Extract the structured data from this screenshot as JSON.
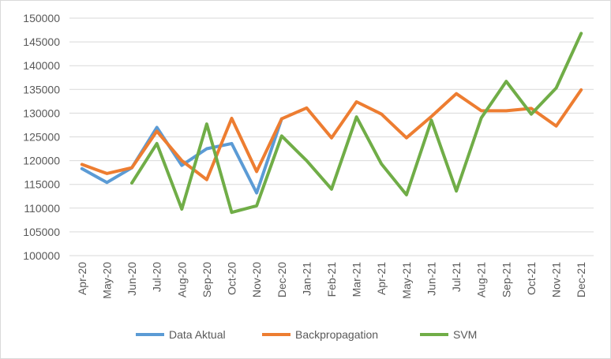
{
  "chart_data": {
    "type": "line",
    "title": "",
    "xlabel": "",
    "ylabel": "",
    "ylim": [
      100000,
      150000
    ],
    "ystep": 5000,
    "grid": true,
    "legend_position": "bottom",
    "categories": [
      "Apr-20",
      "May-20",
      "Jun-20",
      "Jul-20",
      "Aug-20",
      "Sep-20",
      "Oct-20",
      "Nov-20",
      "Dec-20",
      "Jan-21",
      "Feb-21",
      "Mar-21",
      "Apr-21",
      "May-21",
      "Jun-21",
      "Jul-21",
      "Aug-21",
      "Sep-21",
      "Oct-21",
      "Nov-21",
      "Dec-21"
    ],
    "y_tick_labels": [
      "100000",
      "105000",
      "110000",
      "115000",
      "120000",
      "125000",
      "130000",
      "135000",
      "140000",
      "145000",
      "150000"
    ],
    "series": [
      {
        "name": "Data Aktual",
        "color": "#5b9bd5",
        "values": [
          118300,
          115400,
          118500,
          127000,
          119000,
          122500,
          123600,
          113200,
          128800,
          null,
          null,
          null,
          null,
          null,
          null,
          null,
          null,
          null,
          null,
          null,
          null
        ]
      },
      {
        "name": "Backpropagation",
        "color": "#ed7d31",
        "values": [
          119200,
          117300,
          118500,
          126200,
          120000,
          116000,
          128900,
          117700,
          128800,
          131100,
          124800,
          132400,
          129800,
          124800,
          129300,
          134100,
          130500,
          130500,
          131000,
          127300,
          134900
        ]
      },
      {
        "name": "SVM",
        "color": "#70ad47",
        "values": [
          null,
          null,
          115300,
          123600,
          109800,
          127700,
          109100,
          110500,
          125200,
          120000,
          114000,
          129200,
          119300,
          112800,
          128500,
          113600,
          129000,
          136700,
          129800,
          135300,
          146800
        ]
      }
    ]
  }
}
